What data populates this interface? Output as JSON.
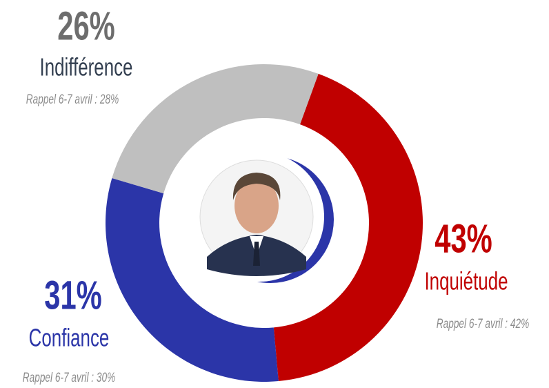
{
  "chart_data": {
    "type": "donut",
    "categories": [
      "Inquiétude",
      "Confiance",
      "Indifférence"
    ],
    "values": [
      43,
      31,
      26
    ],
    "value_labels": [
      "43%",
      "31%",
      "26%"
    ],
    "colors": [
      "#c00000",
      "#2b35a8",
      "#bfbfbf"
    ],
    "recall_labels": [
      "Rappel 6-7 avril : 42%",
      "Rappel 6-7 avril : 30%",
      "Rappel 6-7 avril : 28%"
    ]
  }
}
